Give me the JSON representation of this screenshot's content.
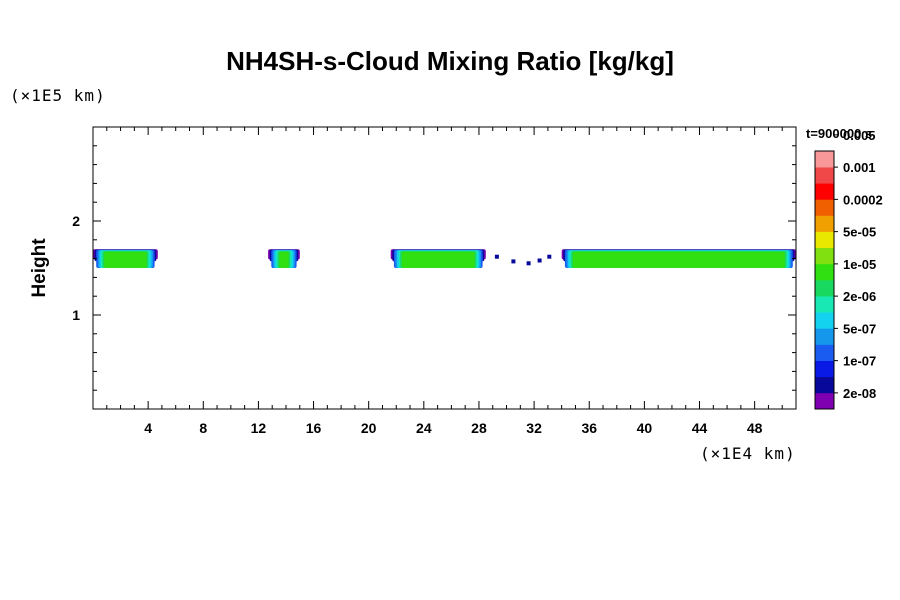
{
  "chart_data": {
    "type": "heatmap",
    "title": "NH4SH-s-Cloud Mixing Ratio [kg/kg]",
    "ylabel": "Height",
    "yunit": "(×1E5 km)",
    "xunit": "(×1E4 km)",
    "time_label": "t=900000 s",
    "xlim": [
      0,
      51
    ],
    "ylim": [
      0,
      3
    ],
    "x_ticks": [
      4,
      8,
      12,
      16,
      20,
      24,
      28,
      32,
      36,
      40,
      44,
      48
    ],
    "y_ticks": [
      1,
      2
    ],
    "colorbar": {
      "colors": [
        "#7f00b0",
        "#08089a",
        "#0a1ae6",
        "#1a5cf0",
        "#1598ec",
        "#12d2f0",
        "#18e8b4",
        "#18d860",
        "#30e010",
        "#80e010",
        "#e8e800",
        "#f0a000",
        "#f06000",
        "#ff0000",
        "#f04848",
        "#f89898"
      ],
      "labels": [
        "2e-08",
        "1e-07",
        "5e-07",
        "2e-06",
        "1e-05",
        "5e-05",
        "0.0002",
        "0.001",
        "0.005"
      ]
    },
    "cloud_layers": [
      {
        "x": [
          0,
          4.7
        ],
        "top": 1.7,
        "base": 1.5
      },
      {
        "x": [
          12.7,
          15.0
        ],
        "top": 1.7,
        "base": 1.5
      },
      {
        "x": [
          21.6,
          28.5
        ],
        "top": 1.7,
        "base": 1.5
      },
      {
        "x": [
          34.0,
          51.0
        ],
        "top": 1.7,
        "base": 1.5
      }
    ]
  }
}
